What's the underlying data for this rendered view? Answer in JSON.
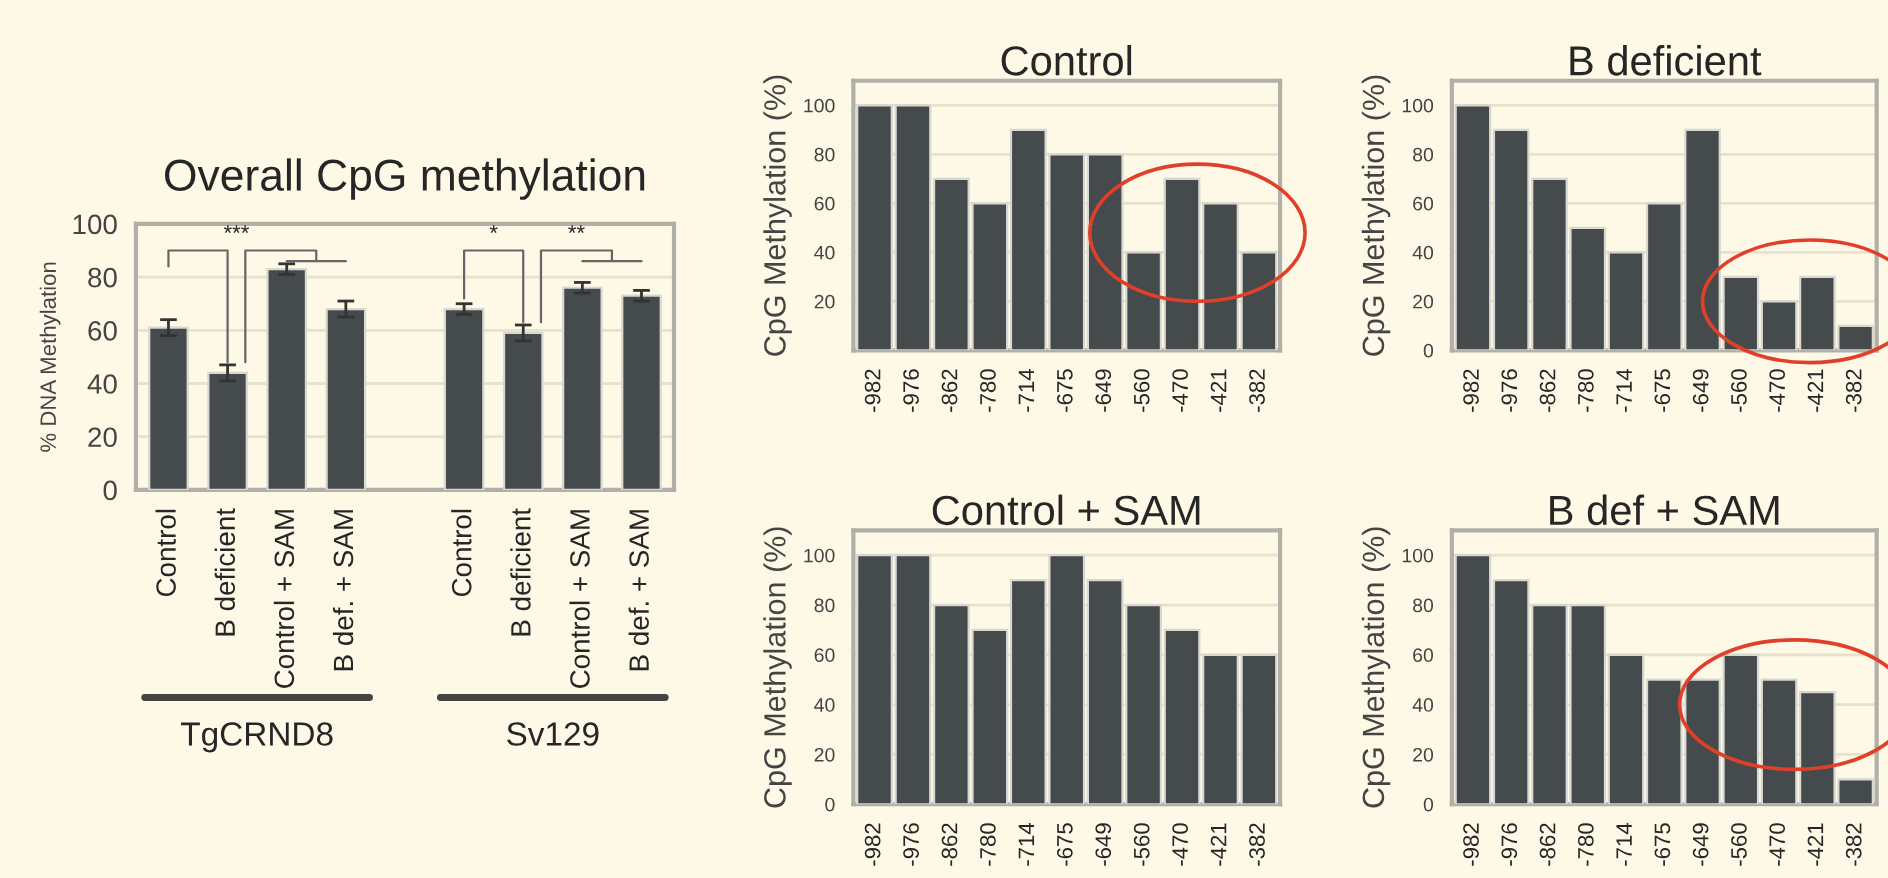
{
  "chart_data": [
    {
      "type": "bar",
      "title": "Overall CpG methylation",
      "ylabel": "% DNA Methylation",
      "categories": [
        "Control",
        "B deficient",
        "Control + SAM",
        "B def. + SAM",
        null,
        "Control",
        "B deficient",
        "Control + SAM",
        "B def. + SAM"
      ],
      "values": [
        61,
        44,
        83,
        68,
        null,
        68,
        59,
        76,
        73
      ],
      "errors": [
        3,
        3,
        2,
        3,
        null,
        2,
        3,
        2,
        2
      ],
      "color": "#454a4c",
      "ylim": [
        0,
        100
      ],
      "yticks": [
        0,
        20,
        40,
        60,
        80,
        100
      ],
      "grid": "y",
      "annotations": [
        "TgCRND8",
        "Sv129",
        "***",
        "*",
        "**"
      ]
    },
    {
      "type": "bar",
      "title": "Control",
      "ylabel": "CpG Methylation (%)",
      "categories": [
        "-982",
        "-976",
        "-862",
        "-780",
        "-714",
        "-675",
        "-649",
        "-560",
        "-470",
        "-421",
        "-382"
      ],
      "values": [
        100,
        100,
        70,
        60,
        90,
        80,
        80,
        40,
        70,
        60,
        40
      ],
      "color": "#454a4c",
      "ylim": [
        0,
        110
      ],
      "yticks": [
        20,
        40,
        60,
        80,
        100
      ],
      "grid": "y"
    },
    {
      "type": "bar",
      "title": "B deficient",
      "ylabel": "CpG Methylation (%)",
      "categories": [
        "-982",
        "-976",
        "-862",
        "-780",
        "-714",
        "-675",
        "-649",
        "-560",
        "-470",
        "-421",
        "-382"
      ],
      "values": [
        100,
        90,
        70,
        50,
        40,
        60,
        90,
        30,
        20,
        30,
        10
      ],
      "color": "#454a4c",
      "ylim": [
        0,
        110
      ],
      "yticks": [
        0,
        20,
        40,
        60,
        80,
        100
      ],
      "grid": "y"
    },
    {
      "type": "bar",
      "title": "Control + SAM",
      "ylabel": "CpG Methylation (%)",
      "categories": [
        "-982",
        "-976",
        "-862",
        "-780",
        "-714",
        "-675",
        "-649",
        "-560",
        "-470",
        "-421",
        "-382"
      ],
      "values": [
        100,
        100,
        80,
        70,
        90,
        100,
        90,
        80,
        70,
        60,
        60
      ],
      "color": "#454a4c",
      "ylim": [
        0,
        110
      ],
      "yticks": [
        0,
        20,
        40,
        60,
        80,
        100
      ],
      "grid": "y"
    },
    {
      "type": "bar",
      "title": "B def + SAM",
      "ylabel": "CpG Methylation (%)",
      "categories": [
        "-982",
        "-976",
        "-862",
        "-780",
        "-714",
        "-675",
        "-649",
        "-560",
        "-470",
        "-421",
        "-382"
      ],
      "values": [
        100,
        90,
        80,
        80,
        60,
        50,
        50,
        60,
        50,
        45,
        10
      ],
      "color": "#454a4c",
      "ylim": [
        0,
        110
      ],
      "yticks": [
        0,
        20,
        40,
        60,
        80,
        100
      ],
      "grid": "y"
    }
  ]
}
